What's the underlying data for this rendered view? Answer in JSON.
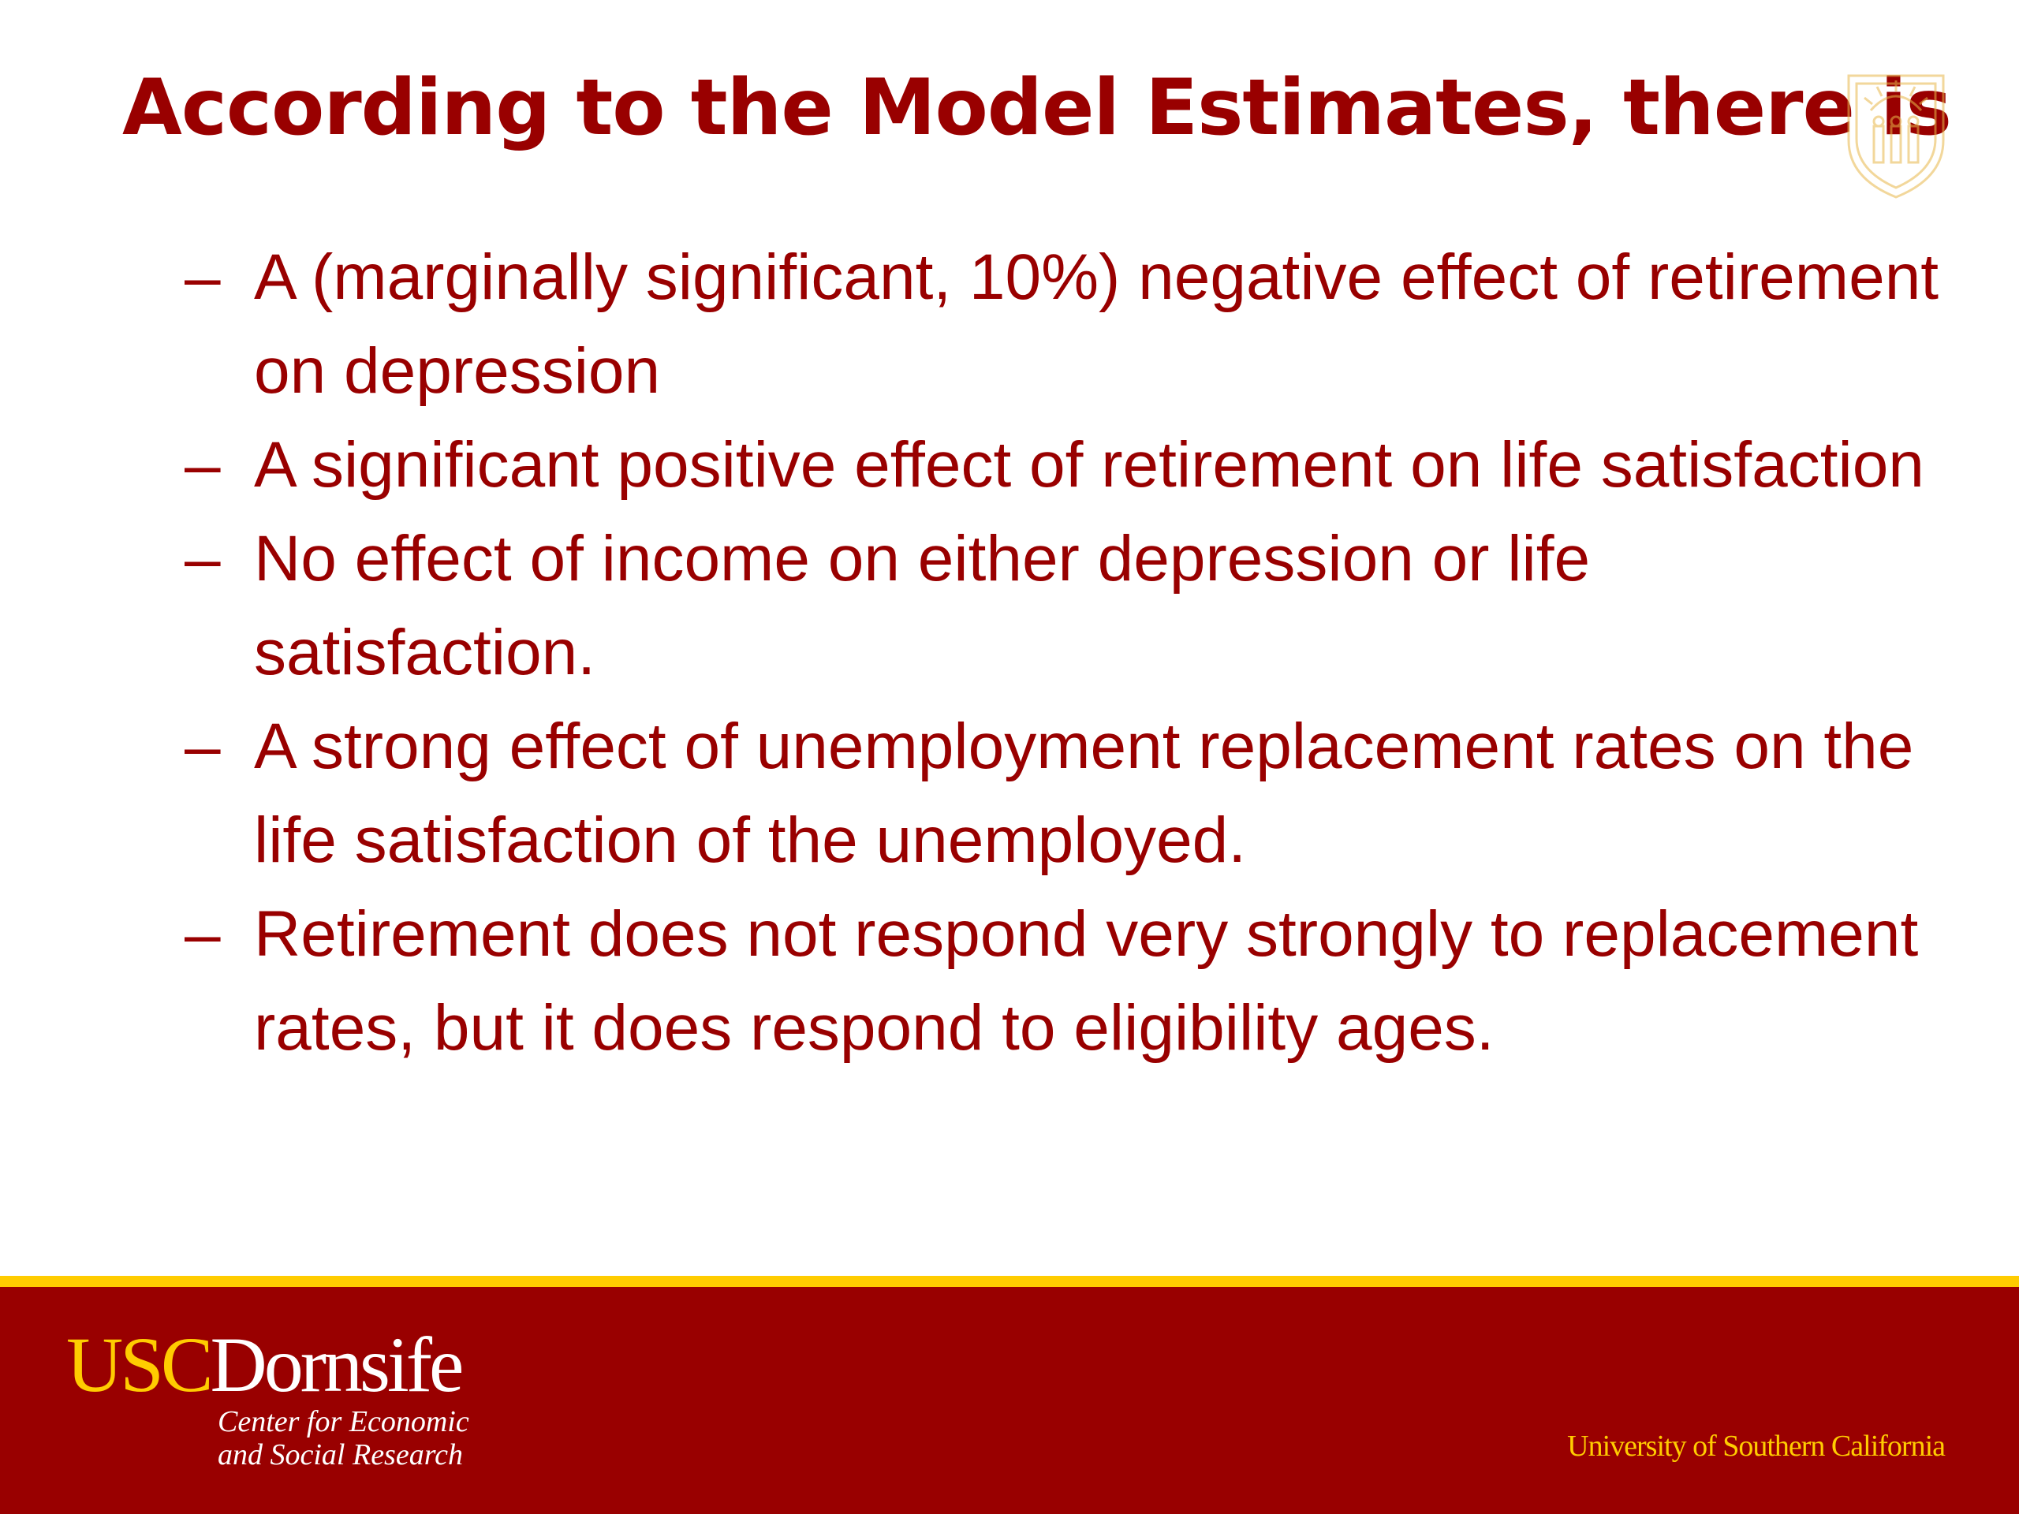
{
  "slide": {
    "title": "According to the Model Estimates, there is",
    "bullet_marker": "–",
    "bullets": [
      "A (marginally significant, 10%) negative effect of retirement on depression",
      "A significant positive effect of retirement on life satisfaction",
      "No effect of income on either depression or life satisfaction.",
      "A strong effect of unemployment replacement rates on the life satisfaction of the unemployed.",
      "Retirement does not respond very strongly to replacement rates, but it does respond to eligibility ages."
    ]
  },
  "footer": {
    "logo_usc": "USC",
    "logo_dornsife": "Dornsife",
    "center_line1": "Center for Economic",
    "center_line2": "and Social Research",
    "university": "University of Southern California"
  },
  "colors": {
    "cardinal": "#990000",
    "gold": "#ffcc00",
    "background": "#ffffff"
  },
  "icons": {
    "seal": "usc-seal-icon"
  }
}
